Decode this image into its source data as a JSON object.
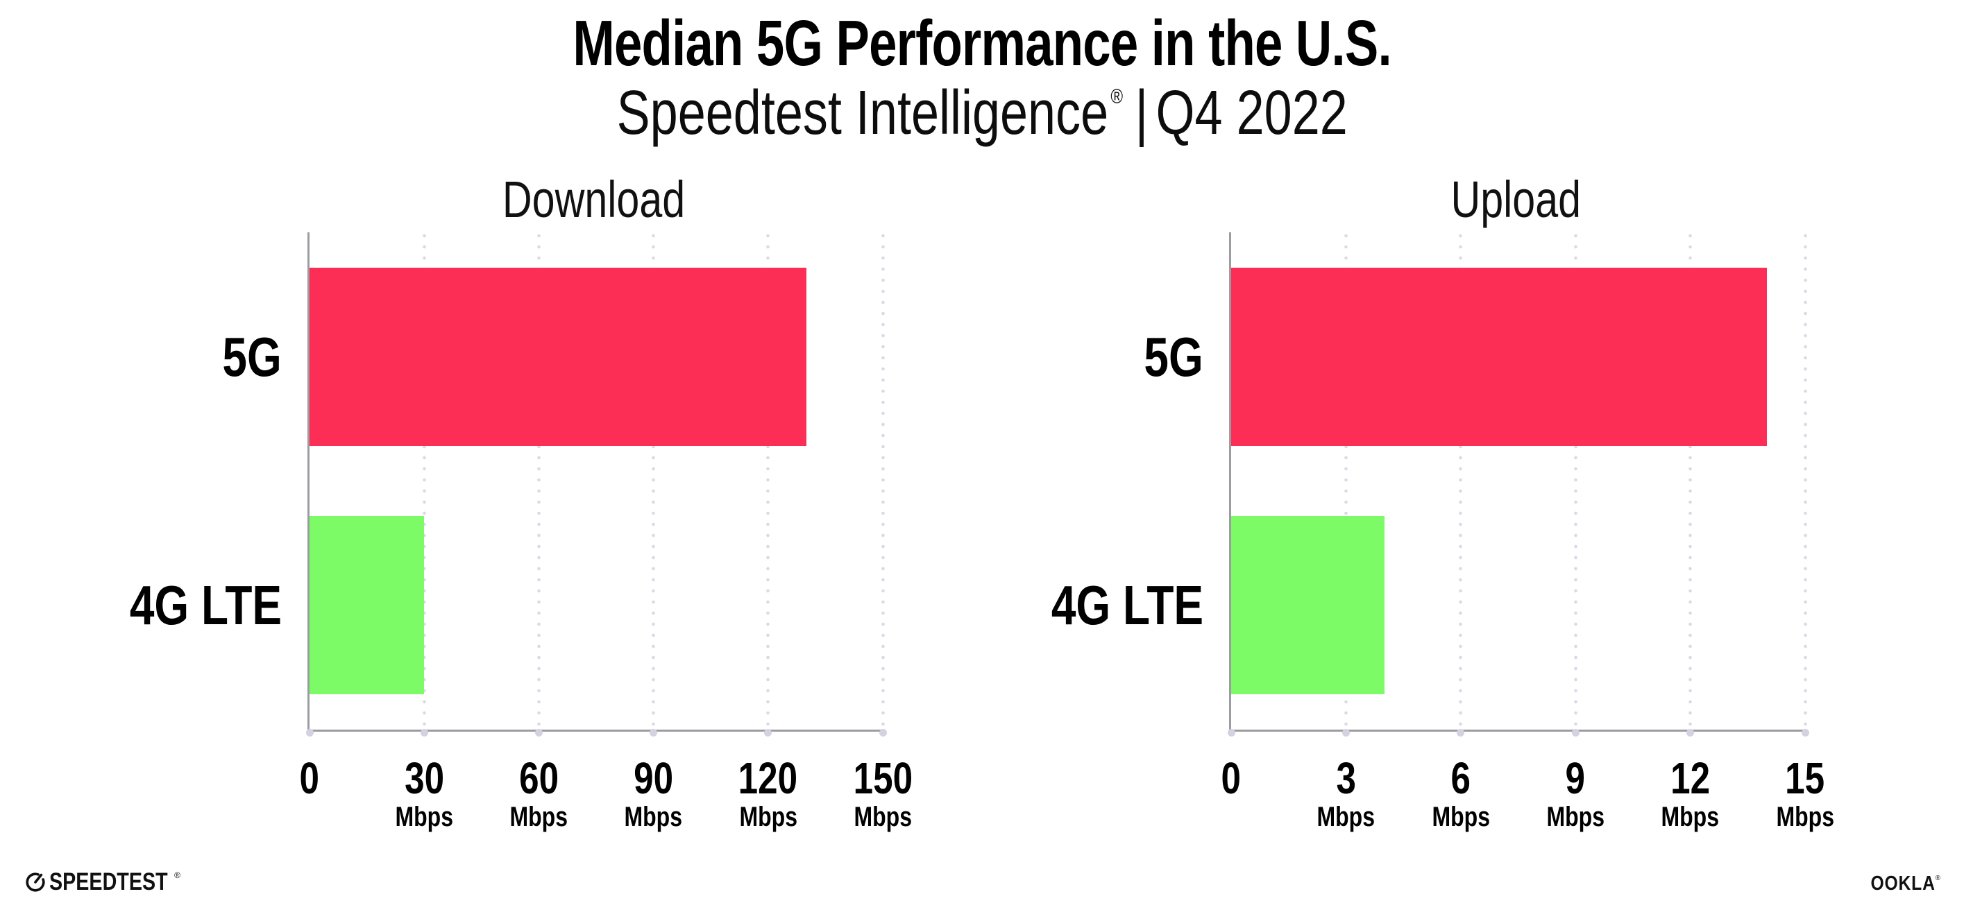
{
  "header": {
    "title": "Median 5G Performance in the U.S.",
    "subtitle": {
      "brand": "Speedtest Intelligence",
      "registered_mark": "®",
      "separator": "|",
      "period": "Q4 2022"
    }
  },
  "chart_data": [
    {
      "type": "bar",
      "orientation": "horizontal",
      "title": "Download",
      "categories": [
        "5G",
        "4G LTE"
      ],
      "values": [
        130,
        30
      ],
      "unit": "Mbps",
      "xlim": [
        0,
        150
      ],
      "xticks": [
        0,
        30,
        60,
        90,
        120,
        150
      ],
      "tick_unit_label": "Mbps",
      "grid": "vertical-dotted",
      "legend": "none",
      "bar_colors": [
        "#FC2E56",
        "#7DFB67"
      ]
    },
    {
      "type": "bar",
      "orientation": "horizontal",
      "title": "Upload",
      "categories": [
        "5G",
        "4G LTE"
      ],
      "values": [
        14,
        4
      ],
      "unit": "Mbps",
      "xlim": [
        0,
        15
      ],
      "xticks": [
        0,
        3,
        6,
        9,
        12,
        15
      ],
      "tick_unit_label": "Mbps",
      "grid": "vertical-dotted",
      "legend": "none",
      "bar_colors": [
        "#FC2E56",
        "#7DFB67"
      ]
    }
  ],
  "footer": {
    "speedtest": {
      "label": "SPEEDTEST",
      "mark": "®"
    },
    "ookla": {
      "label": "OOKLA",
      "mark": "®"
    }
  },
  "colors": {
    "bar_5g": "#FC2E56",
    "bar_4g_lte": "#7DFB67",
    "axis": "#9C9CA2",
    "grid_dot": "#DADAE6",
    "text": "#000000"
  }
}
